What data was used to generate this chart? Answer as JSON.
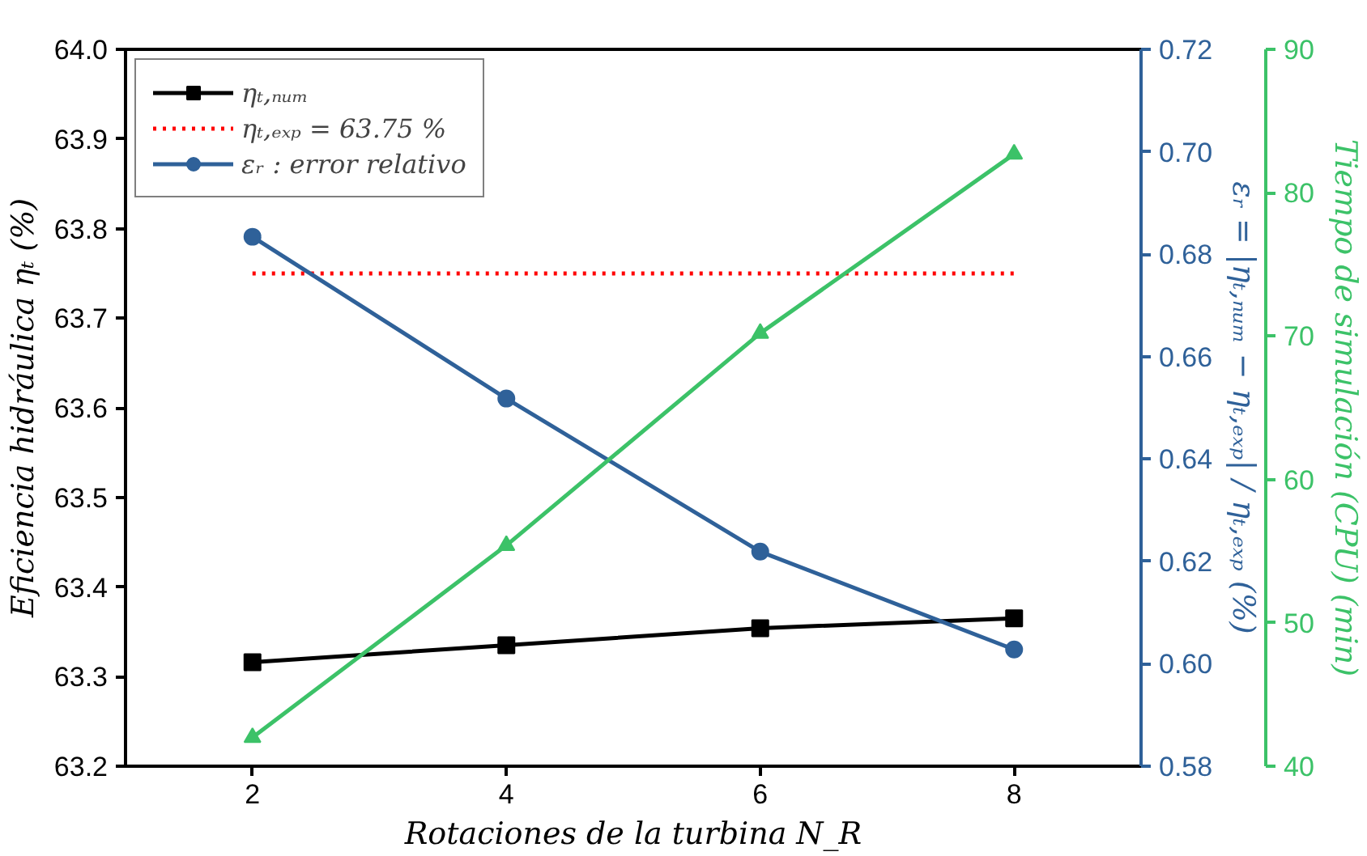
{
  "chart_data": {
    "type": "line",
    "xlabel": "Rotaciones de la turbina N_R",
    "ylabel": "Eficiencia hidráulica ηₜ (%)",
    "y2label": "εᵣ = |ηₜ,ₙᵤₘ − ηₜ,ₑₓₚ| / ηₜ,ₑₓₚ (%)",
    "y3label": "Tiempo de simulación (CPU) (min)",
    "x": [
      2,
      4,
      6,
      8
    ],
    "xlim": [
      1,
      9
    ],
    "xticks": [
      2,
      4,
      6,
      8
    ],
    "ylim": [
      63.2,
      64.0
    ],
    "yticks": [
      {
        "value": 63.2,
        "label": "63.2"
      },
      {
        "value": 63.3,
        "label": "63.3"
      },
      {
        "value": 63.4,
        "label": "63.4"
      },
      {
        "value": 63.5,
        "label": "63.5"
      },
      {
        "value": 63.6,
        "label": "63.6"
      },
      {
        "value": 63.7,
        "label": "63.7"
      },
      {
        "value": 63.8,
        "label": "63.8"
      },
      {
        "value": 63.9,
        "label": "63.9"
      },
      {
        "value": 64.0,
        "label": "64.0"
      }
    ],
    "y2lim": [
      0.58,
      0.72
    ],
    "y2ticks": [
      {
        "value": 0.58,
        "label": "0.58"
      },
      {
        "value": 0.6,
        "label": "0.60"
      },
      {
        "value": 0.62,
        "label": "0.62"
      },
      {
        "value": 0.64,
        "label": "0.64"
      },
      {
        "value": 0.66,
        "label": "0.66"
      },
      {
        "value": 0.68,
        "label": "0.68"
      },
      {
        "value": 0.7,
        "label": "0.70"
      },
      {
        "value": 0.72,
        "label": "0.72"
      }
    ],
    "y3lim": [
      40,
      90
    ],
    "y3ticks": [
      40,
      50,
      60,
      70,
      80,
      90
    ],
    "grid": false,
    "legend": "top left",
    "series": [
      {
        "name": "ηₜ,ₙᵤₘ",
        "color": "#000000",
        "marker": "square",
        "line_style": "solid",
        "values": [
          63.316,
          63.335,
          63.354,
          63.365
        ]
      },
      {
        "name": "ηₜ,ₑₓₚ = 63.75 %",
        "color": "#ff0000",
        "marker": "none",
        "line_style": "dotted",
        "x": [
          2,
          8
        ],
        "values": [
          63.75,
          63.75
        ]
      },
      {
        "name": "εᵣ : error relativo",
        "color": "#2f6199",
        "marker": "circle",
        "line_style": "solid",
        "axis": "y2",
        "values": [
          0.6834,
          0.6518,
          0.6219,
          0.6028
        ]
      },
      {
        "color": "#3cc268",
        "marker": "triangle",
        "line_style": "solid",
        "axis": "y3",
        "values": [
          42.0,
          55.4,
          70.2,
          82.7
        ]
      }
    ]
  }
}
